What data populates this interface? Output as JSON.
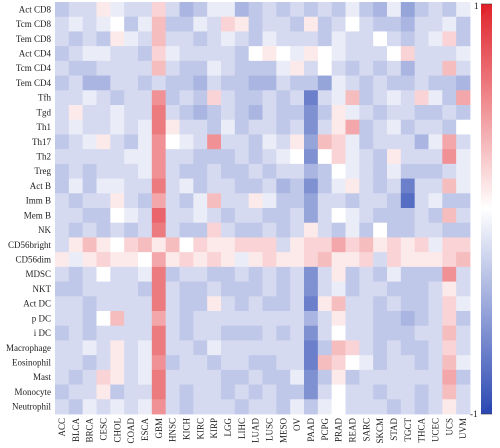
{
  "chart_data": {
    "type": "heatmap",
    "title": "",
    "xlabel": "",
    "ylabel": "",
    "legend_position": "right",
    "color_scale": {
      "min": -1,
      "max": 1,
      "min_label": "-1",
      "max_label": "1",
      "colors": [
        "#2b48b3",
        "#ffffff",
        "#e0232b"
      ]
    },
    "rows": [
      "Act CD8",
      "Tcm CD8",
      "Tem CD8",
      "Act CD4",
      "Tcm CD4",
      "Tem CD4",
      "Tfh",
      "Tgd",
      "Th1",
      "Th17",
      "Th2",
      "Treg",
      "Act B",
      "Imm B",
      "Mem B",
      "NK",
      "CD56bright",
      "CD56dim",
      "MDSC",
      "NKT",
      "Act DC",
      "p DC",
      "i DC",
      "Macrophage",
      "Eosinophil",
      "Mast",
      "Monocyte",
      "Neutrophil"
    ],
    "columns": [
      "ACC",
      "BLCA",
      "BRCA",
      "CESC",
      "CHOL",
      "COAD",
      "ESCA",
      "GBM",
      "HNSC",
      "KICH",
      "KIRC",
      "KIRP",
      "LGG",
      "LIHC",
      "LUAD",
      "LUSC",
      "MESO",
      "OV",
      "PAAD",
      "PCPG",
      "PRAD",
      "READ",
      "SARC",
      "SKCM",
      "STAD",
      "TGCT",
      "THCA",
      "UCEC",
      "UCS",
      "UVM"
    ],
    "values": [
      [
        -0.3,
        -0.2,
        -0.2,
        0.1,
        -0.1,
        -0.2,
        -0.2,
        0.2,
        -0.2,
        -0.4,
        -0.3,
        -0.1,
        -0.1,
        -0.4,
        -0.3,
        -0.2,
        -0.3,
        -0.2,
        -0.3,
        -0.2,
        -0.3,
        -0.1,
        -0.3,
        -0.4,
        -0.1,
        -0.5,
        -0.3,
        -0.2,
        -0.3,
        -0.1
      ],
      [
        -0.2,
        -0.1,
        -0.2,
        -0.1,
        0.0,
        -0.3,
        -0.1,
        0.3,
        -0.3,
        -0.3,
        -0.1,
        -0.2,
        0.2,
        0.1,
        -0.3,
        -0.2,
        -0.2,
        -0.3,
        0.1,
        -0.3,
        -0.2,
        0.0,
        -0.2,
        -0.3,
        -0.3,
        -0.4,
        -0.2,
        -0.2,
        -0.1,
        -0.3
      ],
      [
        -0.2,
        -0.3,
        -0.2,
        -0.3,
        0.1,
        -0.1,
        -0.2,
        0.3,
        -0.2,
        -0.2,
        -0.3,
        -0.2,
        -0.1,
        -0.2,
        -0.3,
        -0.1,
        -0.2,
        -0.2,
        -0.2,
        -0.3,
        -0.1,
        -0.2,
        -0.2,
        0.0,
        -0.2,
        -0.3,
        -0.2,
        -0.1,
        0.2,
        -0.3
      ],
      [
        -0.3,
        -0.2,
        -0.1,
        -0.1,
        -0.2,
        -0.2,
        -0.3,
        0.2,
        -0.1,
        -0.2,
        -0.2,
        -0.2,
        -0.2,
        -0.3,
        0.0,
        0.1,
        0.0,
        -0.1,
        0.1,
        0.0,
        -0.1,
        -0.2,
        -0.2,
        -0.2,
        0.0,
        0.2,
        -0.2,
        -0.2,
        -0.2,
        -0.1
      ],
      [
        -0.2,
        -0.3,
        -0.3,
        -0.2,
        -0.2,
        -0.2,
        -0.2,
        0.3,
        -0.2,
        -0.3,
        -0.3,
        -0.1,
        -0.2,
        -0.3,
        -0.3,
        -0.3,
        -0.1,
        0.1,
        -0.2,
        0.0,
        -0.2,
        -0.3,
        -0.2,
        -0.3,
        -0.2,
        -0.4,
        -0.2,
        -0.2,
        0.3,
        -0.2
      ],
      [
        -0.3,
        -0.2,
        -0.4,
        -0.4,
        -0.2,
        -0.2,
        -0.3,
        -0.2,
        -0.3,
        -0.3,
        -0.4,
        -0.2,
        -0.3,
        -0.3,
        -0.4,
        -0.4,
        -0.2,
        -0.3,
        -0.3,
        -0.5,
        -0.1,
        -0.2,
        -0.3,
        -0.2,
        -0.3,
        -0.3,
        -0.2,
        -0.3,
        -0.3,
        -0.4
      ],
      [
        -0.2,
        -0.2,
        -0.1,
        -0.2,
        -0.3,
        -0.2,
        -0.2,
        0.5,
        -0.3,
        -0.2,
        -0.3,
        0.2,
        -0.2,
        -0.3,
        -0.3,
        -0.2,
        -0.3,
        -0.2,
        -0.7,
        -0.2,
        -0.1,
        0.3,
        -0.3,
        -0.2,
        -0.1,
        -0.2,
        0.2,
        -0.1,
        -0.3,
        0.4
      ],
      [
        -0.2,
        0.1,
        -0.2,
        -0.2,
        -0.1,
        -0.2,
        -0.2,
        0.6,
        -0.2,
        -0.3,
        -0.4,
        -0.3,
        -0.2,
        -0.3,
        -0.4,
        -0.2,
        -0.3,
        -0.3,
        -0.6,
        -0.3,
        0.1,
        -0.1,
        -0.2,
        -0.3,
        -0.2,
        -0.2,
        -0.3,
        -0.3,
        -0.2,
        -0.3
      ],
      [
        -0.2,
        -0.1,
        -0.2,
        -0.2,
        -0.1,
        -0.2,
        -0.1,
        0.6,
        0.1,
        -0.2,
        -0.2,
        -0.3,
        -0.1,
        -0.3,
        -0.2,
        -0.2,
        -0.3,
        -0.2,
        -0.6,
        -0.2,
        0.1,
        0.4,
        -0.3,
        -0.2,
        -0.1,
        -0.3,
        -0.2,
        -0.2,
        -0.3,
        0.0
      ],
      [
        -0.3,
        -0.2,
        -0.1,
        0.1,
        -0.2,
        -0.3,
        -0.1,
        0.5,
        0.0,
        -0.1,
        -0.2,
        0.5,
        -0.2,
        -0.2,
        -0.3,
        -0.1,
        -0.2,
        0.1,
        -0.5,
        0.3,
        0.2,
        -0.1,
        -0.3,
        -0.2,
        -0.2,
        -0.2,
        -0.4,
        -0.1,
        0.4,
        -0.2
      ],
      [
        -0.2,
        -0.2,
        -0.2,
        -0.2,
        -0.2,
        -0.1,
        -0.1,
        0.5,
        -0.2,
        -0.2,
        -0.3,
        -0.3,
        -0.3,
        -0.2,
        -0.3,
        -0.2,
        -0.1,
        0.0,
        -0.6,
        0.0,
        0.2,
        -0.1,
        -0.2,
        -0.3,
        0.1,
        -0.2,
        -0.2,
        -0.2,
        0.5,
        -0.1
      ],
      [
        -0.3,
        -0.2,
        -0.3,
        -0.2,
        -0.2,
        -0.2,
        -0.1,
        0.5,
        -0.2,
        -0.3,
        -0.3,
        -0.2,
        -0.3,
        -0.3,
        -0.2,
        -0.3,
        -0.2,
        -0.2,
        -0.4,
        -0.3,
        0.0,
        -0.1,
        -0.2,
        -0.3,
        -0.1,
        -0.3,
        -0.3,
        -0.3,
        -0.2,
        -0.1
      ],
      [
        -0.3,
        -0.1,
        -0.3,
        -0.1,
        -0.1,
        -0.2,
        -0.2,
        0.6,
        -0.2,
        -0.1,
        -0.3,
        -0.2,
        -0.2,
        -0.3,
        -0.3,
        -0.2,
        -0.4,
        -0.3,
        -0.6,
        -0.3,
        -0.1,
        0.1,
        -0.2,
        -0.3,
        -0.2,
        -0.7,
        -0.2,
        -0.2,
        0.3,
        -0.1
      ],
      [
        -0.2,
        -0.3,
        -0.2,
        -0.2,
        0.1,
        -0.2,
        -0.3,
        0.4,
        -0.2,
        -0.3,
        -0.1,
        0.3,
        -0.2,
        -0.2,
        0.1,
        -0.1,
        -0.3,
        -0.3,
        -0.5,
        -0.2,
        -0.2,
        -0.3,
        -0.2,
        -0.2,
        -0.3,
        -0.8,
        -0.2,
        -0.1,
        -0.3,
        -0.3
      ],
      [
        -0.2,
        -0.2,
        -0.3,
        -0.3,
        0.0,
        -0.1,
        -0.2,
        0.7,
        -0.2,
        -0.2,
        -0.1,
        -0.2,
        -0.3,
        -0.2,
        -0.2,
        -0.3,
        -0.3,
        -0.2,
        -0.5,
        -0.2,
        0.0,
        -0.1,
        -0.2,
        -0.3,
        -0.3,
        -0.3,
        -0.2,
        -0.3,
        0.3,
        -0.2
      ],
      [
        -0.2,
        -0.3,
        -0.2,
        -0.3,
        -0.2,
        -0.3,
        -0.2,
        0.6,
        -0.2,
        -0.3,
        -0.3,
        0.2,
        -0.2,
        -0.3,
        -0.3,
        -0.2,
        -0.3,
        -0.2,
        0.1,
        -0.2,
        -0.3,
        -0.1,
        -0.3,
        0.0,
        -0.3,
        -0.3,
        -0.2,
        -0.2,
        -0.3,
        -0.3
      ],
      [
        -0.2,
        0.1,
        0.3,
        0.1,
        0.0,
        0.2,
        0.3,
        0.1,
        0.3,
        0.0,
        0.2,
        0.1,
        0.1,
        0.2,
        0.2,
        0.2,
        -0.2,
        0.1,
        0.2,
        0.2,
        0.4,
        0.2,
        0.3,
        0.1,
        0.2,
        0.1,
        0.2,
        -0.1,
        0.2,
        0.2
      ],
      [
        0.1,
        -0.1,
        0.1,
        0.2,
        0.1,
        0.1,
        0.0,
        0.4,
        0.1,
        0.2,
        0.1,
        0.2,
        0.1,
        -0.1,
        0.1,
        0.2,
        0.1,
        0.1,
        0.2,
        0.3,
        0.1,
        0.1,
        0.2,
        -0.2,
        0.2,
        0.1,
        0.1,
        0.1,
        0.2,
        0.3
      ],
      [
        -0.2,
        -0.3,
        -0.2,
        0.0,
        -0.2,
        -0.2,
        -0.1,
        0.6,
        -0.3,
        -0.2,
        -0.2,
        -0.3,
        -0.3,
        -0.2,
        -0.3,
        -0.2,
        -0.3,
        -0.2,
        -0.6,
        -0.2,
        0.1,
        -0.3,
        -0.2,
        -0.3,
        -0.1,
        -0.3,
        -0.3,
        -0.3,
        0.5,
        -0.2
      ],
      [
        -0.3,
        -0.3,
        -0.2,
        -0.2,
        -0.2,
        -0.2,
        -0.3,
        0.6,
        -0.2,
        -0.3,
        -0.3,
        -0.2,
        -0.3,
        -0.3,
        -0.3,
        -0.2,
        -0.3,
        -0.2,
        -0.6,
        -0.2,
        -0.1,
        -0.3,
        -0.2,
        -0.2,
        -0.3,
        -0.3,
        -0.3,
        -0.2,
        0.1,
        -0.2
      ],
      [
        -0.2,
        -0.2,
        -0.3,
        -0.2,
        -0.2,
        -0.2,
        -0.2,
        0.6,
        -0.2,
        -0.3,
        -0.3,
        0.1,
        -0.2,
        -0.3,
        -0.2,
        -0.3,
        -0.3,
        -0.2,
        -0.7,
        0.1,
        0.3,
        -0.2,
        -0.2,
        -0.3,
        -0.2,
        -0.3,
        -0.3,
        -0.2,
        0.2,
        -0.1
      ],
      [
        -0.2,
        -0.2,
        -0.3,
        0.0,
        0.3,
        -0.2,
        -0.2,
        0.4,
        -0.2,
        -0.3,
        -0.2,
        -0.2,
        -0.2,
        -0.2,
        -0.2,
        -0.2,
        -0.2,
        -0.2,
        -0.4,
        -0.2,
        0.1,
        -0.2,
        -0.2,
        -0.3,
        -0.3,
        -0.4,
        -0.3,
        -0.2,
        0.2,
        -0.3
      ],
      [
        -0.3,
        -0.2,
        -0.3,
        -0.2,
        -0.2,
        -0.2,
        -0.2,
        0.6,
        -0.2,
        -0.3,
        -0.2,
        -0.2,
        -0.3,
        -0.3,
        -0.3,
        -0.2,
        -0.3,
        -0.2,
        -0.6,
        -0.2,
        0.0,
        -0.2,
        -0.2,
        -0.3,
        -0.3,
        -0.3,
        -0.2,
        -0.2,
        0.3,
        -0.2
      ],
      [
        -0.2,
        -0.2,
        -0.1,
        -0.2,
        0.1,
        -0.2,
        -0.1,
        0.6,
        -0.2,
        -0.2,
        -0.3,
        -0.1,
        -0.2,
        -0.2,
        -0.2,
        -0.2,
        -0.2,
        -0.2,
        -0.7,
        -0.3,
        0.3,
        0.2,
        -0.2,
        -0.3,
        -0.2,
        -0.3,
        -0.3,
        -0.2,
        0.2,
        -0.2
      ],
      [
        -0.2,
        -0.2,
        -0.3,
        -0.2,
        0.1,
        -0.2,
        -0.1,
        0.5,
        -0.3,
        -0.2,
        -0.2,
        -0.3,
        -0.2,
        -0.2,
        -0.3,
        -0.3,
        -0.2,
        -0.2,
        -0.7,
        0.3,
        0.2,
        0.0,
        -0.1,
        -0.3,
        -0.2,
        -0.2,
        -0.3,
        -0.2,
        0.3,
        -0.1
      ],
      [
        -0.2,
        -0.3,
        -0.2,
        0.2,
        0.1,
        -0.2,
        -0.1,
        0.6,
        -0.2,
        -0.2,
        -0.2,
        -0.2,
        -0.3,
        -0.3,
        -0.2,
        -0.3,
        -0.3,
        -0.1,
        -0.6,
        -0.3,
        0.1,
        -0.3,
        -0.2,
        -0.2,
        -0.2,
        -0.2,
        -0.2,
        -0.2,
        0.4,
        -0.3
      ],
      [
        -0.3,
        -0.2,
        -0.2,
        0.1,
        -0.3,
        -0.2,
        -0.2,
        0.6,
        -0.2,
        -0.3,
        -0.2,
        -0.2,
        -0.3,
        -0.2,
        -0.3,
        -0.2,
        -0.3,
        -0.3,
        -0.6,
        -0.2,
        0.0,
        -0.2,
        -0.2,
        -0.3,
        -0.2,
        -0.2,
        -0.3,
        -0.2,
        0.3,
        -0.2
      ],
      [
        -0.2,
        -0.3,
        -0.1,
        -0.2,
        -0.1,
        -0.2,
        -0.1,
        0.5,
        -0.2,
        -0.3,
        -0.2,
        -0.2,
        -0.2,
        -0.3,
        -0.2,
        -0.2,
        -0.3,
        -0.1,
        -0.3,
        -0.1,
        0.0,
        -0.2,
        -0.2,
        -0.2,
        -0.3,
        -0.2,
        -0.3,
        -0.2,
        0.1,
        -0.2
      ]
    ]
  }
}
